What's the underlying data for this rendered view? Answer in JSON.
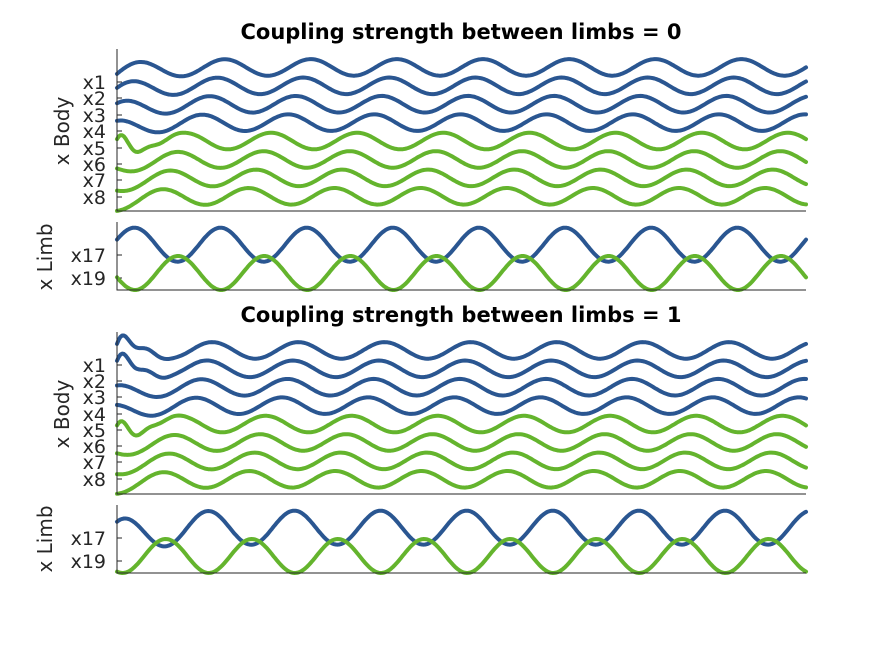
{
  "colors": {
    "body_trace": "#2a5691",
    "limb_trace": "#64b42d",
    "axis": "#262626"
  },
  "chart_data": [
    {
      "type": "line",
      "title": "Coupling strength between limbs = 0",
      "ylabel": "x Body",
      "tick_labels": [
        "x1",
        "x2",
        "x3",
        "x4",
        "x5",
        "x6",
        "x7",
        "x8"
      ],
      "grid": false,
      "legend": "none",
      "series": [
        {
          "color": "#2a5691",
          "offset": 8,
          "amplitude": 0.45,
          "cycles": 8,
          "phase": 0.0,
          "transient": "small"
        },
        {
          "color": "#2a5691",
          "offset": 7,
          "amplitude": 0.45,
          "cycles": 8,
          "phase": 0.55,
          "transient": "small"
        },
        {
          "color": "#2a5691",
          "offset": 6,
          "amplitude": 0.45,
          "cycles": 8,
          "phase": 1.1,
          "transient": "small"
        },
        {
          "color": "#2a5691",
          "offset": 5,
          "amplitude": 0.45,
          "cycles": 8,
          "phase": 1.65,
          "transient": "small"
        },
        {
          "color": "#64b42d",
          "offset": 4,
          "amplitude": 0.45,
          "cycles": 8,
          "phase": 2.9,
          "transient": "spike"
        },
        {
          "color": "#64b42d",
          "offset": 3,
          "amplitude": 0.45,
          "cycles": 8,
          "phase": 3.45,
          "transient": "small"
        },
        {
          "color": "#64b42d",
          "offset": 2,
          "amplitude": 0.45,
          "cycles": 8,
          "phase": 4.0,
          "transient": "small"
        },
        {
          "color": "#64b42d",
          "offset": 1,
          "amplitude": 0.45,
          "cycles": 8,
          "phase": 4.55,
          "transient": "small"
        }
      ]
    },
    {
      "type": "line",
      "title": "",
      "ylabel": "x Limb",
      "tick_labels": [
        "x17",
        "x19"
      ],
      "grid": false,
      "legend": "none",
      "series": [
        {
          "color": "#2a5691",
          "offset": 2,
          "amplitude": 0.6,
          "cycles": 8,
          "phase": 0.3,
          "transient": "none"
        },
        {
          "color": "#64b42d",
          "offset": 1,
          "amplitude": 0.6,
          "cycles": 8,
          "phase": 3.4,
          "transient": "none"
        }
      ]
    },
    {
      "type": "line",
      "title": "Coupling strength between limbs = 1",
      "ylabel": "x Body",
      "tick_labels": [
        "x1",
        "x2",
        "x3",
        "x4",
        "x5",
        "x6",
        "x7",
        "x8"
      ],
      "grid": false,
      "legend": "none",
      "series": [
        {
          "color": "#2a5691",
          "offset": 8,
          "amplitude": 0.45,
          "cycles": 8,
          "phase": 0.9,
          "transient": "spike"
        },
        {
          "color": "#2a5691",
          "offset": 7,
          "amplitude": 0.45,
          "cycles": 8,
          "phase": 1.3,
          "transient": "spike"
        },
        {
          "color": "#2a5691",
          "offset": 6,
          "amplitude": 0.45,
          "cycles": 8,
          "phase": 1.7,
          "transient": "small"
        },
        {
          "color": "#2a5691",
          "offset": 5,
          "amplitude": 0.45,
          "cycles": 8,
          "phase": 2.1,
          "transient": "small"
        },
        {
          "color": "#64b42d",
          "offset": 4,
          "amplitude": 0.45,
          "cycles": 8,
          "phase": 3.3,
          "transient": "spike"
        },
        {
          "color": "#64b42d",
          "offset": 3,
          "amplitude": 0.45,
          "cycles": 8,
          "phase": 3.7,
          "transient": "small"
        },
        {
          "color": "#64b42d",
          "offset": 2,
          "amplitude": 0.45,
          "cycles": 8,
          "phase": 4.1,
          "transient": "small"
        },
        {
          "color": "#64b42d",
          "offset": 1,
          "amplitude": 0.45,
          "cycles": 8,
          "phase": 4.5,
          "transient": "small"
        }
      ]
    },
    {
      "type": "line",
      "title": "",
      "ylabel": "x Limb",
      "tick_labels": [
        "x17",
        "x19"
      ],
      "grid": false,
      "legend": "none",
      "series": [
        {
          "color": "#2a5691",
          "offset": 2,
          "amplitude": 0.6,
          "cycles": 8,
          "phase": 1.2,
          "transient": "small"
        },
        {
          "color": "#64b42d",
          "offset": 1,
          "amplitude": 0.6,
          "cycles": 8,
          "phase": 4.3,
          "transient": "none"
        }
      ]
    }
  ]
}
